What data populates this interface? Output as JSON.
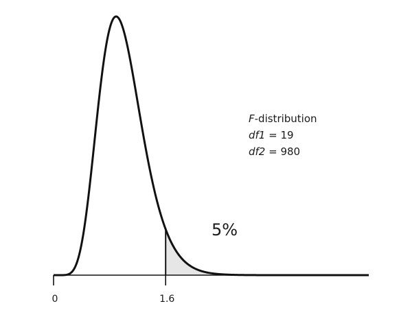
{
  "chart_data": {
    "type": "area",
    "distribution": "F",
    "df1": 19,
    "df2": 980,
    "critical_value": 1.6,
    "shaded_tail_percent": 5,
    "x_ticks": [
      0,
      1.6
    ],
    "x_range": [
      0,
      4.5
    ],
    "grid": false,
    "shaded_color": "#e6e6e6",
    "curve_color": "#111111"
  },
  "labels": {
    "tick_0": "0",
    "tick_1": "1.6",
    "tail_label": "5%",
    "legend_line1_italic": "F",
    "legend_line1_rest": "-distribution",
    "legend_line2_italic": "df1",
    "legend_line2_rest": " = 19",
    "legend_line3_italic": "df2",
    "legend_line3_rest": " = 980"
  }
}
